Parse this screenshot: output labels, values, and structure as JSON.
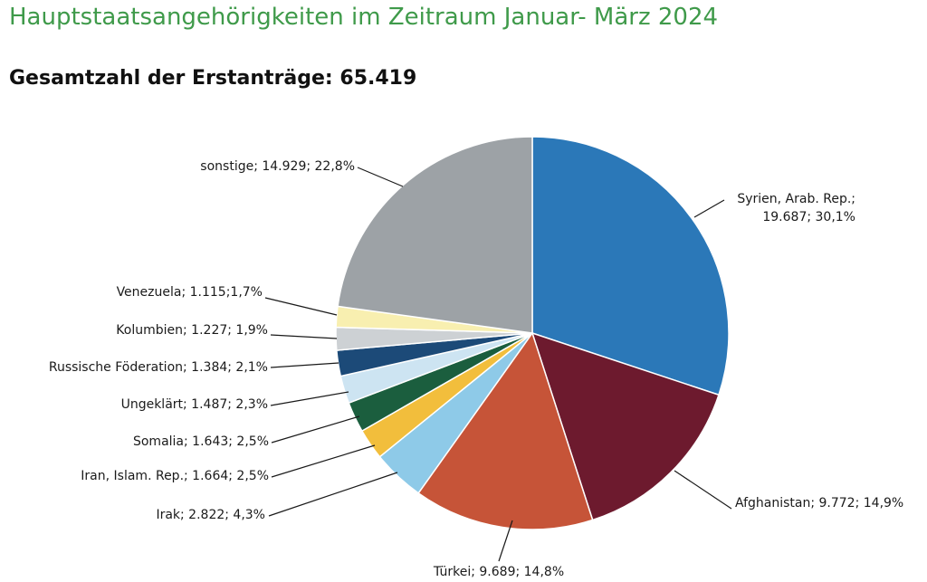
{
  "header": {
    "title": "Hauptstaatsangehörigkeiten im Zeitraum Januar- März 2024",
    "subtitle": "Gesamtzahl der Erstanträge: 65.419"
  },
  "chart_data": {
    "type": "pie",
    "slices": [
      {
        "label": "Syrien, Arab. Rep.",
        "value": 19687,
        "percent": 30.1,
        "text": [
          "Syrien, Arab. Rep.;",
          "19.687; 30,1%"
        ],
        "color": "#2b78b8"
      },
      {
        "label": "Afghanistan",
        "value": 9772,
        "percent": 14.9,
        "text": [
          "Afghanistan; 9.772; 14,9%"
        ],
        "color": "#6d1a2e"
      },
      {
        "label": "Türkei",
        "value": 9689,
        "percent": 14.8,
        "text": [
          "Türkei; 9.689; 14,8%"
        ],
        "color": "#c65438"
      },
      {
        "label": "Irak",
        "value": 2822,
        "percent": 4.3,
        "text": [
          "Irak; 2.822; 4,3%"
        ],
        "color": "#8ecae8"
      },
      {
        "label": "Iran, Islam. Rep.",
        "value": 1664,
        "percent": 2.5,
        "text": [
          "Iran, Islam. Rep.; 1.664; 2,5%"
        ],
        "color": "#f2be3c"
      },
      {
        "label": "Somalia",
        "value": 1643,
        "percent": 2.5,
        "text": [
          "Somalia; 1.643; 2,5%"
        ],
        "color": "#1b5e3e"
      },
      {
        "label": "Ungeklärt",
        "value": 1487,
        "percent": 2.3,
        "text": [
          "Ungeklärt; 1.487; 2,3%"
        ],
        "color": "#cde4f2"
      },
      {
        "label": "Russische Föderation",
        "value": 1384,
        "percent": 2.1,
        "text": [
          "Russische Föderation; 1.384; 2,1%"
        ],
        "color": "#1c4a78"
      },
      {
        "label": "Kolumbien",
        "value": 1227,
        "percent": 1.9,
        "text": [
          "Kolumbien; 1.227; 1,9%"
        ],
        "color": "#cdd1d4"
      },
      {
        "label": "Venezuela",
        "value": 1115,
        "percent": 1.7,
        "text": [
          "Venezuela; 1.115;1,7%"
        ],
        "color": "#f8efb0"
      },
      {
        "label": "sonstige",
        "value": 14929,
        "percent": 22.8,
        "text": [
          "sonstige; 14.929; 22,8%"
        ],
        "color": "#9da2a6"
      }
    ]
  }
}
